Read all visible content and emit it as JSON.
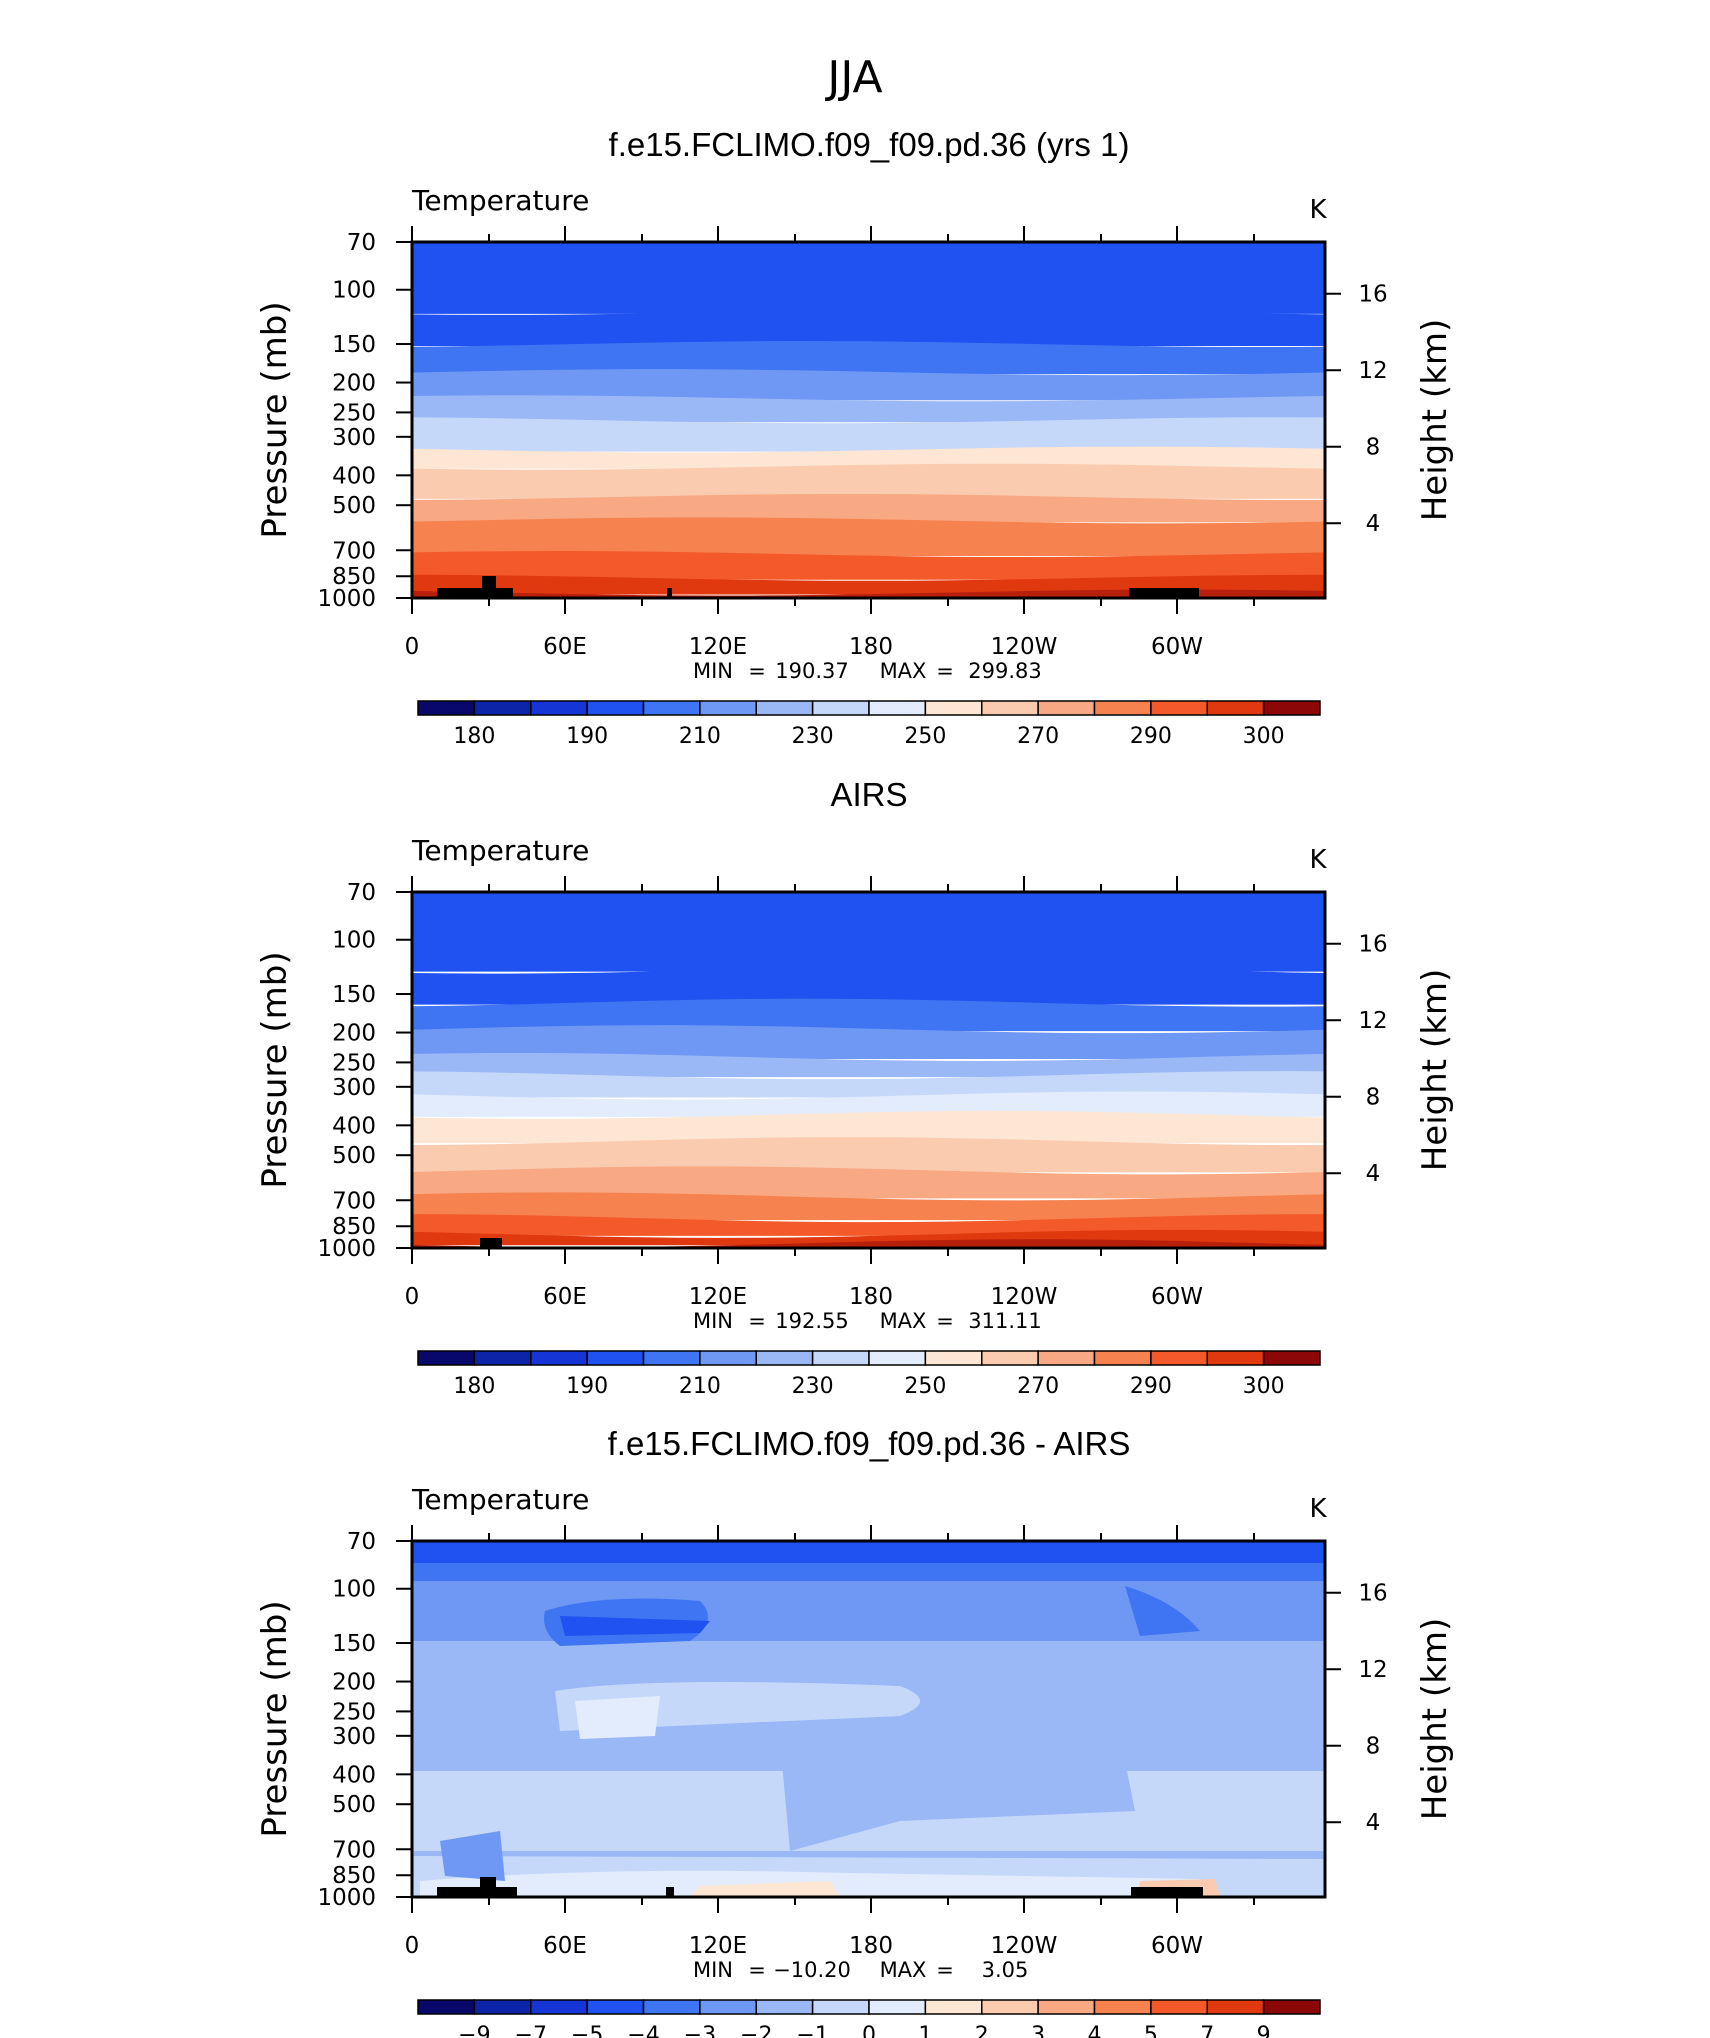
{
  "figure": {
    "title": "JJA"
  },
  "colors": {
    "temp_levels": [
      "#08086b",
      "#0b24a8",
      "#1535d6",
      "#1f52f0",
      "#3f74f2",
      "#6e98f4",
      "#9bb8f6",
      "#c6d8fa",
      "#e2ecfc",
      "#fde6d3",
      "#fbcbb0",
      "#f8a882",
      "#f6824f",
      "#f4592a",
      "#e0380f",
      "#b8200c",
      "#8c0808"
    ],
    "diff_levels": [
      "#08086b",
      "#0b24a8",
      "#1535d6",
      "#1f52f0",
      "#3f74f2",
      "#6e98f4",
      "#9bb8f6",
      "#c6d8fa",
      "#e2ecfc",
      "#fde6d3",
      "#fbcbb0",
      "#f8a882",
      "#f6824f",
      "#f4592a",
      "#e0380f",
      "#b8200c",
      "#8c0808"
    ]
  },
  "chart_data": [
    {
      "type": "heatmap",
      "title": "f.e15.FCLIMO.f09_f09.pd.36 (yrs 1)",
      "variable": "Temperature",
      "units": "K",
      "ylabel": "Pressure (mb)",
      "y2label": "Height (km)",
      "x_ticks": [
        "0",
        "60E",
        "120E",
        "180",
        "120W",
        "60W"
      ],
      "y_ticks": [
        "70",
        "100",
        "150",
        "200",
        "250",
        "300",
        "400",
        "500",
        "700",
        "850",
        "1000"
      ],
      "y2_ticks": [
        "16",
        "12",
        "8",
        "4"
      ],
      "stats": {
        "min_label": "MIN",
        "min": "190.37",
        "max_label": "MAX",
        "max": "299.83"
      },
      "colorbar_ticks": [
        "180",
        "190",
        "210",
        "230",
        "250",
        "270",
        "290",
        "300"
      ],
      "levels_by_pressure": [
        {
          "p": 70,
          "band": 3
        },
        {
          "p": 100,
          "band": 3
        },
        {
          "p": 150,
          "band": 4
        },
        {
          "p": 200,
          "band": 6
        },
        {
          "p": 250,
          "band": 7
        },
        {
          "p": 300,
          "band": 9
        },
        {
          "p": 400,
          "band": 10
        },
        {
          "p": 500,
          "band": 12
        },
        {
          "p": 700,
          "band": 13
        },
        {
          "p": 850,
          "band": 14
        },
        {
          "p": 1000,
          "band": 14
        }
      ]
    },
    {
      "type": "heatmap",
      "title": "AIRS",
      "variable": "Temperature",
      "units": "K",
      "ylabel": "Pressure (mb)",
      "y2label": "Height (km)",
      "x_ticks": [
        "0",
        "60E",
        "120E",
        "180",
        "120W",
        "60W"
      ],
      "y_ticks": [
        "70",
        "100",
        "150",
        "200",
        "250",
        "300",
        "400",
        "500",
        "700",
        "850",
        "1000"
      ],
      "y2_ticks": [
        "16",
        "12",
        "8",
        "4"
      ],
      "stats": {
        "min_label": "MIN",
        "min": "192.55",
        "max_label": "MAX",
        "max": "311.11"
      },
      "colorbar_ticks": [
        "180",
        "190",
        "210",
        "230",
        "250",
        "270",
        "290",
        "300"
      ]
    },
    {
      "type": "heatmap",
      "title": "f.e15.FCLIMO.f09_f09.pd.36 - AIRS",
      "variable": "Temperature",
      "units": "K",
      "ylabel": "Pressure (mb)",
      "y2label": "Height (km)",
      "x_ticks": [
        "0",
        "60E",
        "120E",
        "180",
        "120W",
        "60W"
      ],
      "y_ticks": [
        "70",
        "100",
        "150",
        "200",
        "250",
        "300",
        "400",
        "500",
        "700",
        "850",
        "1000"
      ],
      "y2_ticks": [
        "16",
        "12",
        "8",
        "4"
      ],
      "stats": {
        "min_label": "MIN",
        "min": "−10.20",
        "max_label": "MAX",
        "max": "3.05"
      },
      "colorbar_ticks": [
        "−9",
        "−7",
        "−5",
        "−4",
        "−3",
        "−2",
        "−1",
        "0",
        "1",
        "2",
        "3",
        "4",
        "5",
        "7",
        "9"
      ]
    }
  ]
}
